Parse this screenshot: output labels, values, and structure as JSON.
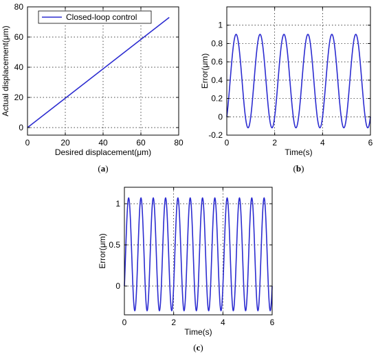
{
  "chart_data": [
    {
      "id": "a",
      "type": "line",
      "caption": "a",
      "xlabel": "Desired displacement(μm)",
      "ylabel": "Actual displacement(μm)",
      "xlim": [
        0,
        80
      ],
      "ylim": [
        -5,
        80
      ],
      "xticks": [
        0,
        20,
        40,
        60,
        80
      ],
      "yticks": [
        0,
        20,
        40,
        60,
        80
      ],
      "grid": true,
      "legend_position": "top-left",
      "series": [
        {
          "name": "Closed-loop control",
          "color": "#2b2bd0",
          "x": [
            0,
            75
          ],
          "y": [
            0,
            73
          ]
        }
      ]
    },
    {
      "id": "b",
      "type": "line",
      "caption": "b",
      "xlabel": "Time(s)",
      "ylabel": "Error(μm)",
      "xlim": [
        0,
        6
      ],
      "ylim": [
        -0.2,
        1.2
      ],
      "xticks": [
        0,
        2,
        4,
        6
      ],
      "yticks": [
        -0.2,
        0,
        0.2,
        0.4,
        0.6,
        0.8,
        1
      ],
      "grid": true,
      "series": [
        {
          "color": "#2b2bd0",
          "waveform": "sine",
          "period": 1,
          "min": -0.12,
          "max": 0.9,
          "start": 0,
          "x_range": [
            0,
            6
          ]
        }
      ]
    },
    {
      "id": "c",
      "type": "line",
      "caption": "c",
      "xlabel": "Time(s)",
      "ylabel": "Error(μm)",
      "xlim": [
        0,
        6
      ],
      "ylim": [
        -0.35,
        1.2
      ],
      "xticks": [
        0,
        2,
        4,
        6
      ],
      "yticks": [
        0,
        0.5,
        1
      ],
      "grid": true,
      "series": [
        {
          "color": "#2b2bd0",
          "waveform": "sine",
          "period": 0.5,
          "min": -0.3,
          "max": 1.07,
          "start": 0,
          "x_range": [
            0,
            6
          ]
        }
      ]
    }
  ]
}
